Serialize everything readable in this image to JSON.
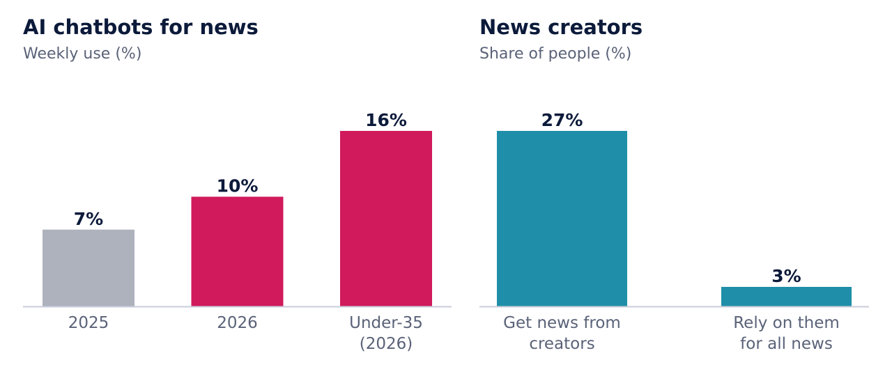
{
  "chart_data": [
    {
      "type": "bar",
      "title": "AI chatbots for news",
      "subtitle": "Weekly use (%)",
      "categories": [
        "2025",
        "2026",
        "Under-35 (2026)"
      ],
      "category_lines": [
        [
          "2025"
        ],
        [
          "2026"
        ],
        [
          "Under-35",
          "(2026)"
        ]
      ],
      "values": [
        7,
        10,
        16
      ],
      "value_labels": [
        "7%",
        "10%",
        "16%"
      ],
      "colors": [
        "#adb2bd",
        "#d01a5c",
        "#d01a5c"
      ],
      "ylim": [
        0,
        16
      ],
      "xlabel": "",
      "ylabel": "",
      "grid": false,
      "legend": "none"
    },
    {
      "type": "bar",
      "title": "News creators",
      "subtitle": "Share of people (%)",
      "categories": [
        "Get news from creators",
        "Rely on them for all news"
      ],
      "category_lines": [
        [
          "Get news from",
          "creators"
        ],
        [
          "Rely on them",
          "for all news"
        ]
      ],
      "values": [
        27,
        3
      ],
      "value_labels": [
        "27%",
        "3%"
      ],
      "colors": [
        "#1f8ea8",
        "#1f8ea8"
      ],
      "ylim": [
        0,
        27
      ],
      "xlabel": "",
      "ylabel": "",
      "grid": false,
      "legend": "none"
    }
  ],
  "colors": {
    "title": "#0c1a3a",
    "subtitle": "#5a6278",
    "axis": "#c9ccd9"
  }
}
